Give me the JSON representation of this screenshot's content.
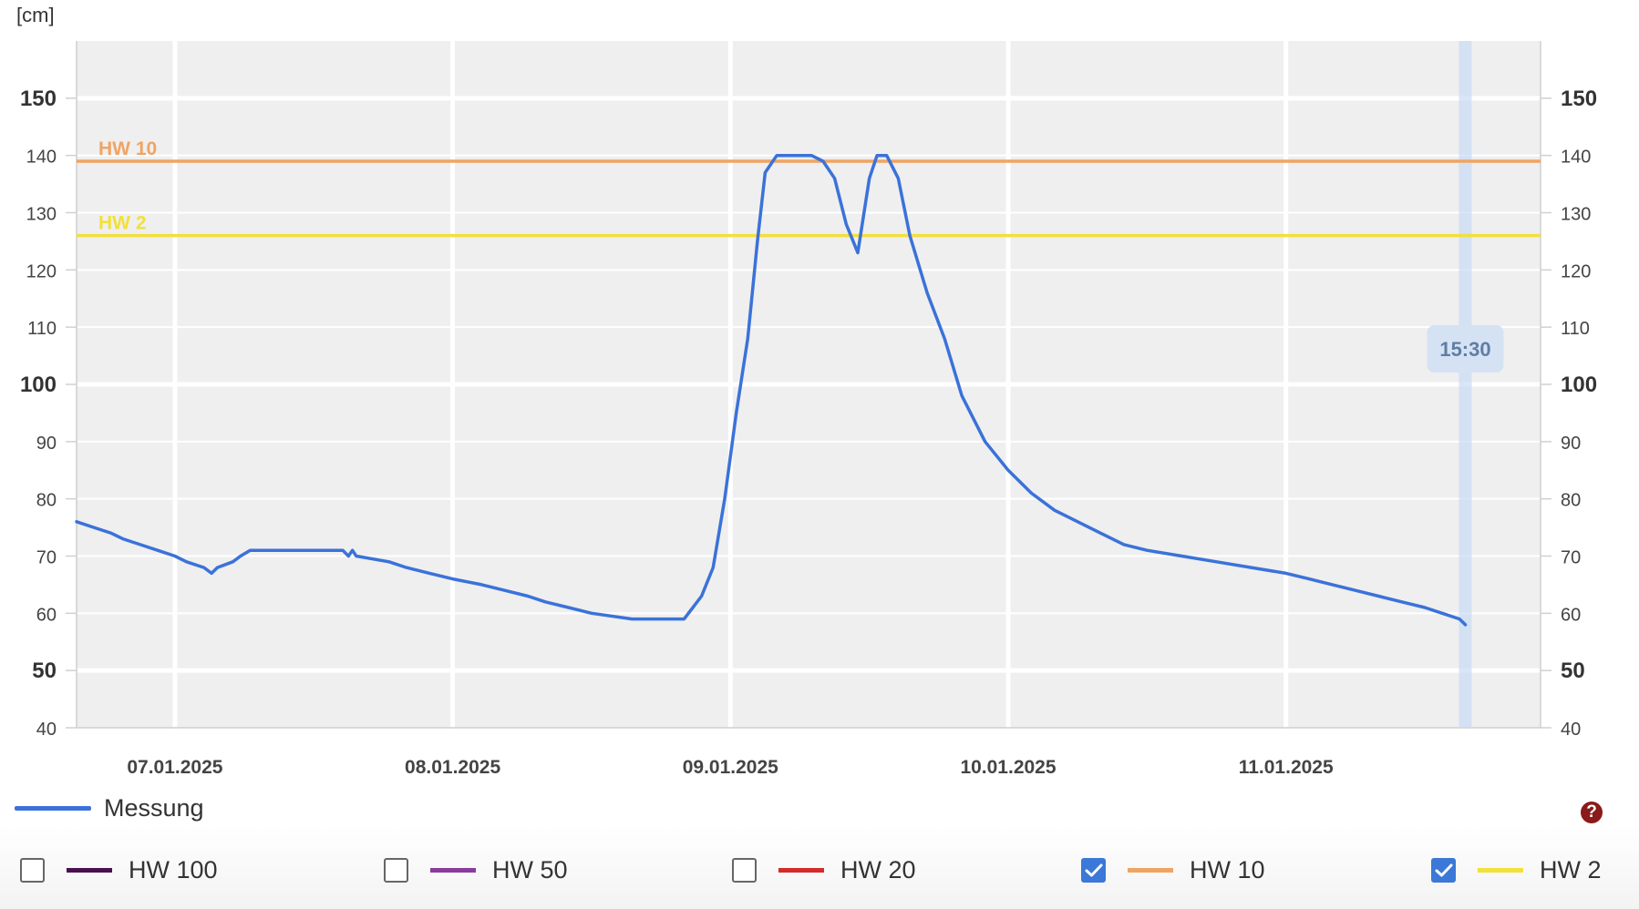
{
  "unit_label": "[cm]",
  "help_icon": "question-icon",
  "legend": {
    "label": "Messung",
    "color": "#3b72d9"
  },
  "toggles": [
    {
      "label": "HW 100",
      "color": "#4a1050",
      "checked": false
    },
    {
      "label": "HW 50",
      "color": "#8b3a9e",
      "checked": false
    },
    {
      "label": "HW 20",
      "color": "#d42b2b",
      "checked": false
    },
    {
      "label": "HW 10",
      "color": "#f0a462",
      "checked": true
    },
    {
      "label": "HW 2",
      "color": "#f2e03a",
      "checked": true
    }
  ],
  "chart_data": {
    "type": "line",
    "ylabel": "[cm]",
    "ylim": [
      40,
      160
    ],
    "yticks": [
      40,
      50,
      60,
      70,
      80,
      90,
      100,
      110,
      120,
      130,
      140,
      150
    ],
    "ytick_bold": [
      50,
      100,
      150
    ],
    "xlim": [
      "2025-01-06 15:30",
      "2025-01-11 22:00"
    ],
    "xticks": [
      {
        "label": "07.01.2025",
        "t": "2025-01-07 00:00"
      },
      {
        "label": "08.01.2025",
        "t": "2025-01-08 00:00"
      },
      {
        "label": "09.01.2025",
        "t": "2025-01-09 00:00"
      },
      {
        "label": "10.01.2025",
        "t": "2025-01-10 00:00"
      },
      {
        "label": "11.01.2025",
        "t": "2025-01-11 00:00"
      }
    ],
    "current_time": {
      "label": "15:30",
      "t": "2025-01-11 15:30"
    },
    "thresholds": [
      {
        "name": "HW 10",
        "value": 139,
        "color": "#f0a462"
      },
      {
        "name": "HW 2",
        "value": 126,
        "color": "#f2e03a"
      }
    ],
    "series": [
      {
        "name": "Messung",
        "color": "#3b72d9",
        "points": [
          [
            "2025-01-06 15:30",
            76
          ],
          [
            "2025-01-06 17:00",
            75
          ],
          [
            "2025-01-06 18:30",
            74
          ],
          [
            "2025-01-06 19:30",
            73
          ],
          [
            "2025-01-06 21:00",
            72
          ],
          [
            "2025-01-06 22:30",
            71
          ],
          [
            "2025-01-07 00:00",
            70
          ],
          [
            "2025-01-07 01:00",
            69
          ],
          [
            "2025-01-07 02:30",
            68
          ],
          [
            "2025-01-07 03:10",
            67
          ],
          [
            "2025-01-07 03:40",
            68
          ],
          [
            "2025-01-07 05:00",
            69
          ],
          [
            "2025-01-07 05:40",
            70
          ],
          [
            "2025-01-07 06:30",
            71
          ],
          [
            "2025-01-07 09:00",
            71
          ],
          [
            "2025-01-07 12:00",
            71
          ],
          [
            "2025-01-07 14:30",
            71
          ],
          [
            "2025-01-07 15:00",
            70
          ],
          [
            "2025-01-07 15:20",
            71
          ],
          [
            "2025-01-07 15:40",
            70
          ],
          [
            "2025-01-07 18:30",
            69
          ],
          [
            "2025-01-07 20:00",
            68
          ],
          [
            "2025-01-07 22:00",
            67
          ],
          [
            "2025-01-08 00:00",
            66
          ],
          [
            "2025-01-08 02:30",
            65
          ],
          [
            "2025-01-08 04:30",
            64
          ],
          [
            "2025-01-08 06:30",
            63
          ],
          [
            "2025-01-08 08:00",
            62
          ],
          [
            "2025-01-08 10:00",
            61
          ],
          [
            "2025-01-08 12:00",
            60
          ],
          [
            "2025-01-08 15:30",
            59
          ],
          [
            "2025-01-08 20:00",
            59
          ],
          [
            "2025-01-08 21:30",
            63
          ],
          [
            "2025-01-08 22:30",
            68
          ],
          [
            "2025-01-08 23:30",
            80
          ],
          [
            "2025-01-09 00:30",
            95
          ],
          [
            "2025-01-09 01:30",
            108
          ],
          [
            "2025-01-09 02:20",
            125
          ],
          [
            "2025-01-09 03:00",
            137
          ],
          [
            "2025-01-09 04:00",
            140
          ],
          [
            "2025-01-09 07:00",
            140
          ],
          [
            "2025-01-09 08:00",
            139
          ],
          [
            "2025-01-09 09:00",
            136
          ],
          [
            "2025-01-09 10:00",
            128
          ],
          [
            "2025-01-09 11:00",
            123
          ],
          [
            "2025-01-09 12:00",
            136
          ],
          [
            "2025-01-09 12:40",
            140
          ],
          [
            "2025-01-09 13:30",
            140
          ],
          [
            "2025-01-09 14:30",
            136
          ],
          [
            "2025-01-09 15:30",
            126
          ],
          [
            "2025-01-09 17:00",
            116
          ],
          [
            "2025-01-09 18:30",
            108
          ],
          [
            "2025-01-09 20:00",
            98
          ],
          [
            "2025-01-09 22:00",
            90
          ],
          [
            "2025-01-10 00:00",
            85
          ],
          [
            "2025-01-10 02:00",
            81
          ],
          [
            "2025-01-10 04:00",
            78
          ],
          [
            "2025-01-10 06:00",
            76
          ],
          [
            "2025-01-10 08:00",
            74
          ],
          [
            "2025-01-10 10:00",
            72
          ],
          [
            "2025-01-10 12:00",
            71
          ],
          [
            "2025-01-10 15:00",
            70
          ],
          [
            "2025-01-10 18:00",
            69
          ],
          [
            "2025-01-10 21:00",
            68
          ],
          [
            "2025-01-11 00:00",
            67
          ],
          [
            "2025-01-11 02:00",
            66
          ],
          [
            "2025-01-11 04:00",
            65
          ],
          [
            "2025-01-11 06:00",
            64
          ],
          [
            "2025-01-11 08:00",
            63
          ],
          [
            "2025-01-11 10:00",
            62
          ],
          [
            "2025-01-11 12:00",
            61
          ],
          [
            "2025-01-11 13:30",
            60
          ],
          [
            "2025-01-11 15:00",
            59
          ],
          [
            "2025-01-11 15:30",
            58
          ]
        ]
      }
    ],
    "grid": true
  }
}
